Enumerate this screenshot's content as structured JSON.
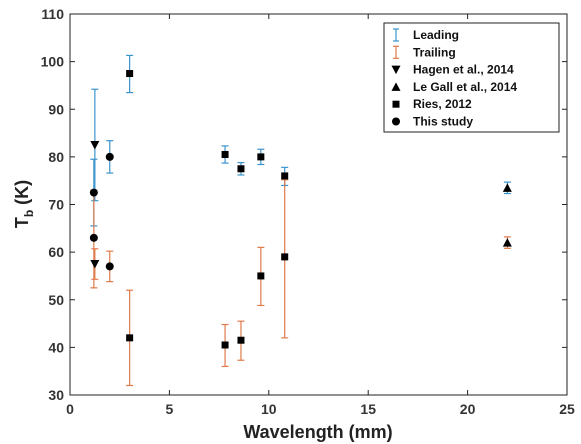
{
  "chart_data": {
    "type": "scatter",
    "xlabel": "Wavelength (mm)",
    "ylabel_main": "T",
    "ylabel_sub": "b",
    "ylabel_unit": "(K)",
    "xlim": [
      0,
      25
    ],
    "ylim": [
      30,
      110
    ],
    "xticks": [
      0,
      5,
      10,
      15,
      20,
      25
    ],
    "yticks": [
      30,
      40,
      50,
      60,
      70,
      80,
      90,
      100,
      110
    ],
    "grid": false,
    "legend_position": "top-right",
    "legend": [
      {
        "label": "Leading",
        "kind": "errorbar",
        "color": "#3a94cc"
      },
      {
        "label": "Trailing",
        "kind": "errorbar",
        "color": "#e07a4a"
      },
      {
        "label": "Hagen et al., 2014",
        "kind": "marker",
        "marker": "triangle-down"
      },
      {
        "label": "Le Gall et al., 2014",
        "kind": "marker",
        "marker": "triangle-up"
      },
      {
        "label": "Ries, 2012",
        "kind": "marker",
        "marker": "square"
      },
      {
        "label": "This study",
        "kind": "marker",
        "marker": "circle"
      }
    ],
    "series": [
      {
        "name": "Hagen et al., 2014",
        "marker": "triangle-down",
        "points": [
          {
            "x": 1.25,
            "y": 82.5,
            "lo": 70.8,
            "hi": 94.2,
            "hemisphere": "leading"
          },
          {
            "x": 1.25,
            "y": 57.5,
            "lo": 54.3,
            "hi": 60.7,
            "hemisphere": "trailing"
          }
        ]
      },
      {
        "name": "Le Gall et al., 2014",
        "marker": "triangle-up",
        "points": [
          {
            "x": 22.0,
            "y": 73.5,
            "lo": 72.3,
            "hi": 74.7,
            "hemisphere": "leading"
          },
          {
            "x": 22.0,
            "y": 62.0,
            "lo": 60.8,
            "hi": 63.2,
            "hemisphere": "trailing"
          }
        ]
      },
      {
        "name": "Ries, 2012",
        "marker": "square",
        "points": [
          {
            "x": 3.0,
            "y": 97.5,
            "lo": 93.5,
            "hi": 101.3,
            "hemisphere": "leading"
          },
          {
            "x": 7.8,
            "y": 80.5,
            "lo": 78.7,
            "hi": 82.3,
            "hemisphere": "leading"
          },
          {
            "x": 8.6,
            "y": 77.5,
            "lo": 76.2,
            "hi": 78.8,
            "hemisphere": "leading"
          },
          {
            "x": 9.6,
            "y": 80.0,
            "lo": 78.4,
            "hi": 81.6,
            "hemisphere": "leading"
          },
          {
            "x": 10.8,
            "y": 76.0,
            "lo": 74.0,
            "hi": 77.8,
            "hemisphere": "leading"
          },
          {
            "x": 3.0,
            "y": 42.0,
            "lo": 32.0,
            "hi": 52.0,
            "hemisphere": "trailing"
          },
          {
            "x": 7.8,
            "y": 40.5,
            "lo": 36.0,
            "hi": 44.8,
            "hemisphere": "trailing"
          },
          {
            "x": 8.6,
            "y": 41.5,
            "lo": 37.3,
            "hi": 45.5,
            "hemisphere": "trailing"
          },
          {
            "x": 9.6,
            "y": 55.0,
            "lo": 48.8,
            "hi": 61.0,
            "hemisphere": "trailing"
          },
          {
            "x": 10.8,
            "y": 59.0,
            "lo": 42.0,
            "hi": 75.2,
            "hemisphere": "trailing"
          }
        ]
      },
      {
        "name": "This study",
        "marker": "circle",
        "points": [
          {
            "x": 1.2,
            "y": 72.5,
            "lo": 65.5,
            "hi": 79.5,
            "hemisphere": "leading"
          },
          {
            "x": 2.0,
            "y": 80.0,
            "lo": 76.6,
            "hi": 83.4,
            "hemisphere": "leading"
          },
          {
            "x": 1.2,
            "y": 63.0,
            "lo": 52.5,
            "hi": 73.0,
            "hemisphere": "trailing"
          },
          {
            "x": 2.0,
            "y": 57.0,
            "lo": 53.8,
            "hi": 60.2,
            "hemisphere": "trailing"
          }
        ]
      }
    ]
  }
}
